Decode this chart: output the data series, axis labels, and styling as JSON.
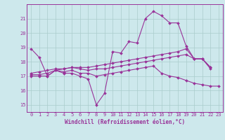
{
  "background_color": "#cde8ec",
  "line_color": "#993399",
  "grid_color": "#aacccc",
  "xlabel": "Windchill (Refroidissement éolien,°C)",
  "xlim": [
    -0.5,
    23.5
  ],
  "ylim": [
    14.5,
    22.0
  ],
  "xticks": [
    0,
    1,
    2,
    3,
    4,
    5,
    6,
    7,
    8,
    9,
    10,
    11,
    12,
    13,
    14,
    15,
    16,
    17,
    18,
    19,
    20,
    21,
    22,
    23
  ],
  "yticks": [
    15,
    16,
    17,
    18,
    19,
    20,
    21
  ],
  "series": [
    {
      "x": [
        0,
        1,
        2,
        3,
        4,
        5,
        6,
        7,
        8,
        9,
        10,
        11,
        12,
        13,
        14,
        15,
        16,
        17,
        18,
        19,
        20,
        21,
        22,
        23
      ],
      "y": [
        18.9,
        18.3,
        17.0,
        17.4,
        17.2,
        17.2,
        17.0,
        16.8,
        15.0,
        15.8,
        18.7,
        18.6,
        19.4,
        19.3,
        21.0,
        21.5,
        21.2,
        20.7,
        20.7,
        19.1,
        18.2,
        18.2,
        17.5,
        null
      ]
    },
    {
      "x": [
        0,
        1,
        2,
        3,
        4,
        5,
        6,
        7,
        8,
        9,
        10,
        11,
        12,
        13,
        14,
        15,
        16,
        17,
        18,
        19,
        20,
        21,
        22,
        23
      ],
      "y": [
        17.0,
        17.0,
        17.0,
        17.4,
        17.3,
        17.4,
        17.2,
        17.2,
        17.0,
        17.1,
        17.2,
        17.3,
        17.4,
        17.5,
        17.6,
        17.7,
        17.2,
        17.0,
        16.9,
        16.7,
        16.5,
        16.4,
        16.3,
        16.3
      ]
    },
    {
      "x": [
        0,
        1,
        2,
        3,
        4,
        5,
        6,
        7,
        8,
        9,
        10,
        11,
        12,
        13,
        14,
        15,
        16,
        17,
        18,
        19,
        20,
        21,
        22,
        23
      ],
      "y": [
        17.1,
        17.1,
        17.2,
        17.4,
        17.5,
        17.6,
        17.5,
        17.4,
        17.5,
        17.5,
        17.6,
        17.7,
        17.8,
        17.9,
        18.0,
        18.1,
        18.2,
        18.3,
        18.4,
        18.5,
        18.2,
        18.2,
        17.6,
        null
      ]
    },
    {
      "x": [
        0,
        1,
        2,
        3,
        4,
        5,
        6,
        7,
        8,
        9,
        10,
        11,
        12,
        13,
        14,
        15,
        16,
        17,
        18,
        19,
        20,
        21,
        22,
        23
      ],
      "y": [
        17.2,
        17.3,
        17.4,
        17.5,
        17.5,
        17.6,
        17.6,
        17.6,
        17.7,
        17.8,
        17.9,
        18.0,
        18.1,
        18.2,
        18.3,
        18.4,
        18.5,
        18.6,
        18.7,
        18.9,
        18.2,
        18.2,
        17.6,
        null
      ]
    }
  ],
  "markersize": 2.0,
  "linewidth": 0.8,
  "tick_fontsize": 5.0,
  "xlabel_fontsize": 5.5
}
